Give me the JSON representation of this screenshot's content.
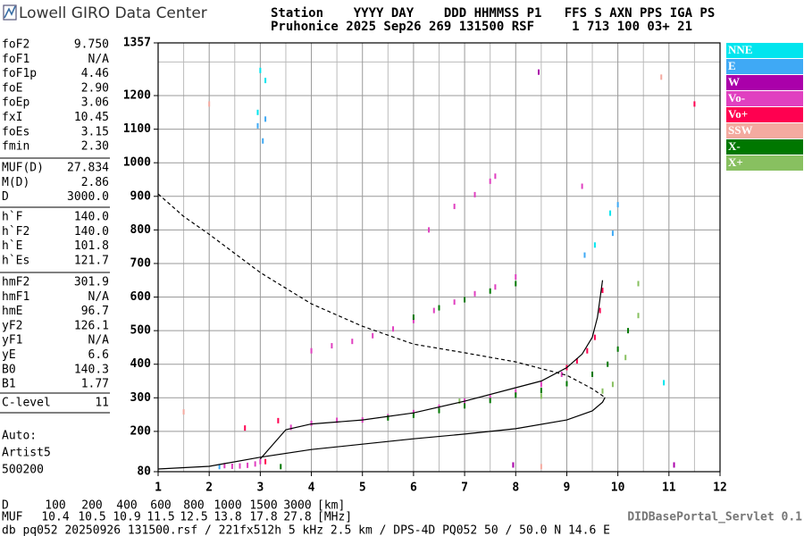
{
  "header": {
    "logo": "Lowell GIRO Data Center",
    "line1": "Station    YYYY DAY    DDD HHMMSS P1   FFS S AXN PPS IGA PS",
    "line2": "Pruhonice 2025 Sep26 269 131500 RSF     1 713 100 03+ 21"
  },
  "params": [
    [
      [
        "foF2",
        "9.750"
      ],
      [
        "foF1",
        "N/A"
      ],
      [
        "foF1p",
        "4.46"
      ],
      [
        "foE",
        "2.90"
      ],
      [
        "foEp",
        "3.06"
      ],
      [
        "fxI",
        "10.45"
      ],
      [
        "foEs",
        "3.15"
      ],
      [
        "fmin",
        "2.30"
      ]
    ],
    [
      [
        "MUF(D)",
        "27.834"
      ],
      [
        "M(D)",
        "2.86"
      ],
      [
        "D",
        "3000.0"
      ]
    ],
    [
      [
        "h`F",
        "140.0"
      ],
      [
        "h`F2",
        "140.0"
      ],
      [
        "h`E",
        "101.8"
      ],
      [
        "h`Es",
        "121.7"
      ]
    ],
    [
      [
        "hmF2",
        "301.9"
      ],
      [
        "hmF1",
        "N/A"
      ],
      [
        "hmE",
        "96.7"
      ],
      [
        "yF2",
        "126.1"
      ],
      [
        "yF1",
        "N/A"
      ],
      [
        "yE",
        "6.6"
      ],
      [
        "B0",
        "140.3"
      ],
      [
        "B1",
        "1.77"
      ]
    ],
    [
      [
        "C-level",
        "11"
      ]
    ]
  ],
  "auto": [
    "Auto:",
    "Artist5",
    "500200"
  ],
  "muf_table": {
    "d_label": "D",
    "d_values": [
      100,
      200,
      400,
      600,
      800,
      1000,
      1500,
      3000
    ],
    "d_unit": "[km]",
    "muf_label": "MUF",
    "muf_values": [
      10.4,
      10.5,
      10.9,
      11.5,
      12.5,
      13.8,
      17.8,
      27.8
    ],
    "muf_unit": "[MHz]"
  },
  "footer": "db pq052 20250926 131500.rsf / 221fx512h 5 kHz 2.5 km / DPS-4D PQ052 50 / 50.0 N 14.6 E",
  "servlet": "DIDBasePortal_Servlet 0.1",
  "chart_data": {
    "type": "scatter",
    "xlim": [
      1,
      12
    ],
    "xticks": [
      1,
      2,
      3,
      4,
      5,
      6,
      7,
      8,
      9,
      10,
      11,
      12
    ],
    "xminorticks": [
      1.5,
      2.5,
      3.5,
      4.5,
      5.5,
      6.5,
      7.5,
      8.5,
      9.5,
      10.5,
      11.5
    ],
    "ylim": [
      80,
      1357
    ],
    "yticks": [
      80,
      200,
      300,
      400,
      500,
      600,
      700,
      800,
      900,
      1000,
      1100,
      1200,
      1357
    ],
    "yminorticks": [
      1300
    ],
    "grid": true,
    "series": [
      {
        "name": "NNE",
        "color": "#00e5ee",
        "x": [
          3.0,
          3.1,
          2.95,
          9.55,
          9.85,
          10.9
        ],
        "values": [
          1275,
          1245,
          1150,
          755,
          850,
          345
        ]
      },
      {
        "name": "E",
        "color": "#3fa9f5",
        "x": [
          2.95,
          3.1,
          3.05,
          9.35,
          9.9,
          10.0,
          2.2
        ],
        "values": [
          1110,
          1130,
          1065,
          725,
          790,
          875,
          95
        ]
      },
      {
        "name": "W",
        "color": "#aa00aa",
        "x": [
          8.45,
          11.1,
          7.95
        ],
        "values": [
          1270,
          100,
          100
        ]
      },
      {
        "name": "Vo-",
        "color": "#e040c0",
        "x": [
          2.3,
          2.45,
          2.6,
          2.75,
          2.9,
          3.0,
          3.6,
          4.0,
          4.5,
          5.0,
          5.5,
          6.0,
          6.5,
          7.0,
          7.5,
          8.0,
          8.5,
          8.9,
          4.0,
          4.4,
          4.8,
          5.2,
          5.6,
          6.0,
          6.4,
          6.8,
          7.2,
          7.6,
          8.0,
          6.3,
          6.8,
          7.2,
          7.5,
          7.6,
          9.3
        ],
        "values": [
          98,
          96,
          97,
          99,
          103,
          110,
          212,
          224,
          233,
          234,
          244,
          256,
          272,
          290,
          300,
          318,
          340,
          370,
          440,
          455,
          468,
          485,
          505,
          530,
          560,
          585,
          610,
          630,
          660,
          800,
          870,
          905,
          945,
          960,
          930
        ]
      },
      {
        "name": "Vo+",
        "color": "#ff0050",
        "x": [
          2.7,
          3.35,
          3.1,
          9.0,
          9.2,
          9.4,
          9.55,
          9.65,
          9.7,
          11.5
        ],
        "values": [
          210,
          232,
          110,
          390,
          410,
          440,
          480,
          560,
          620,
          1175
        ]
      },
      {
        "name": "SSW",
        "color": "#f4aaa0",
        "x": [
          1.5,
          2.0,
          10.85,
          8.5
        ],
        "values": [
          258,
          1175,
          1255,
          95
        ]
      },
      {
        "name": "X-",
        "color": "#007700",
        "x": [
          3.4,
          5.5,
          6.0,
          6.5,
          7.0,
          7.5,
          8.0,
          8.5,
          9.0,
          9.5,
          9.8,
          10.0,
          10.2,
          6.0,
          6.5,
          7.0,
          7.5,
          8.0
        ],
        "values": [
          95,
          240,
          248,
          262,
          276,
          292,
          308,
          322,
          342,
          370,
          400,
          445,
          500,
          540,
          568,
          592,
          618,
          640
        ]
      },
      {
        "name": "X+",
        "color": "#88c060",
        "x": [
          10.4,
          10.4,
          9.7,
          9.9,
          10.15,
          6.9,
          8.5
        ],
        "values": [
          640,
          545,
          320,
          340,
          420,
          290,
          305
        ]
      },
      {
        "color": "#000000",
        "line": true,
        "x": [
          1,
          2,
          3,
          4,
          5,
          6,
          7,
          8,
          9,
          9.5,
          9.7,
          9.75
        ],
        "values": [
          88,
          96,
          123,
          146,
          162,
          178,
          192,
          208,
          234,
          261,
          287,
          301
        ]
      },
      {
        "color": "#000000",
        "line": true,
        "dash": true,
        "x": [
          1,
          1.5,
          2,
          3,
          4,
          5,
          6,
          7,
          8,
          9,
          9.5,
          9.75
        ],
        "values": [
          907,
          840,
          787,
          673,
          580,
          513,
          460,
          434,
          407,
          367,
          327,
          301
        ]
      },
      {
        "color": "#000000",
        "line": true,
        "x": [
          3.0,
          3.5,
          4.0,
          5.0,
          6.0,
          7.0,
          8.0,
          8.5,
          9.0,
          9.3,
          9.5,
          9.6,
          9.7
        ],
        "values": [
          118,
          205,
          222,
          234,
          255,
          290,
          330,
          350,
          390,
          430,
          480,
          540,
          650
        ]
      }
    ]
  }
}
